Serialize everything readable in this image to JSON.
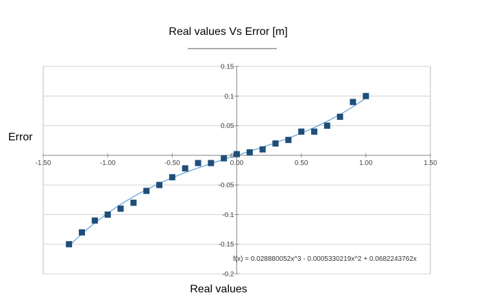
{
  "chart_data": {
    "type": "scatter",
    "title": "Real values Vs Error [m]",
    "xlabel": "Real values",
    "ylabel": "Error",
    "xlim": [
      -1.5,
      1.5
    ],
    "ylim": [
      -0.2,
      0.15
    ],
    "x_ticks": [
      "-1.50",
      "-1.00",
      "-0.50",
      "0.00",
      "0.50",
      "1.00",
      "1.50"
    ],
    "x_tick_values": [
      -1.5,
      -1.0,
      -0.5,
      0.0,
      0.5,
      1.0,
      1.5
    ],
    "y_ticks": [
      "0.15",
      "0.1",
      "0.05",
      "0",
      "-0.05",
      "-0.1",
      "-0.15",
      "-0.2"
    ],
    "y_tick_values": [
      0.15,
      0.1,
      0.05,
      0,
      -0.05,
      -0.1,
      -0.15,
      -0.2
    ],
    "grid": true,
    "marker_color": "#1f4e79",
    "trend_color": "#5b9bd5",
    "series": [
      {
        "x": [
          -1.3,
          -1.2,
          -1.1,
          -1.0,
          -0.9,
          -0.8,
          -0.7,
          -0.6,
          -0.5,
          -0.4,
          -0.3,
          -0.2,
          -0.1,
          0.0,
          0.1,
          0.2,
          0.3,
          0.4,
          0.5,
          0.6,
          0.7,
          0.8,
          0.9,
          1.0
        ],
        "y": [
          -0.15,
          -0.13,
          -0.11,
          -0.1,
          -0.09,
          -0.08,
          -0.06,
          -0.05,
          -0.037,
          -0.022,
          -0.013,
          -0.013,
          -0.005,
          0.002,
          0.005,
          0.01,
          0.02,
          0.026,
          0.04,
          0.04,
          0.05,
          0.065,
          0.09,
          0.1
        ]
      }
    ],
    "trendline": {
      "coefficients": [
        0.028880052,
        -0.0005330219,
        0.0682243762,
        0
      ],
      "equation": "f(x) = 0.028880052x^3 - 0.0005330219x^2 + 0.0682243762x"
    }
  }
}
